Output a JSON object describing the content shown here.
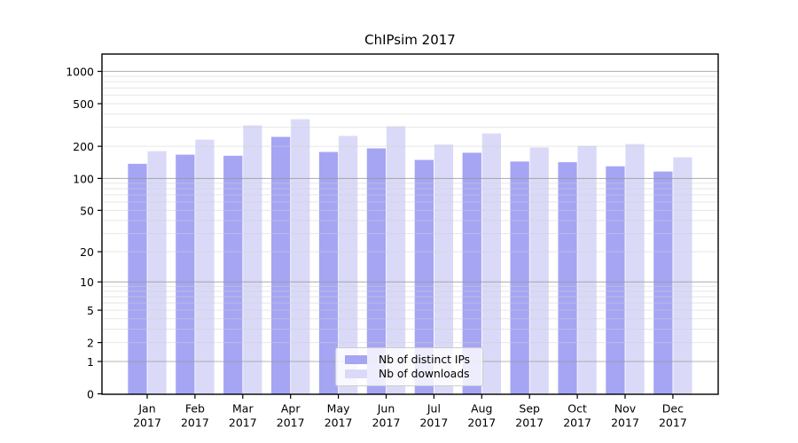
{
  "chart_data": {
    "type": "bar",
    "title": "ChIPsim 2017",
    "categories": [
      "Jan",
      "Feb",
      "Mar",
      "Apr",
      "May",
      "Jun",
      "Jul",
      "Aug",
      "Sep",
      "Oct",
      "Nov",
      "Dec"
    ],
    "xlabel_year": "2017",
    "series": [
      {
        "name": "Nb of distinct IPs",
        "color": "#a5a5f4",
        "values": [
          137,
          167,
          163,
          245,
          177,
          191,
          149,
          174,
          144,
          142,
          130,
          116
        ]
      },
      {
        "name": "Nb of downloads",
        "color": "#dadaf8",
        "values": [
          180,
          231,
          314,
          358,
          250,
          308,
          208,
          264,
          195,
          202,
          210,
          158
        ]
      }
    ],
    "yscale": "log1p",
    "yticks": [
      1000,
      500,
      200,
      100,
      50,
      20,
      10,
      5,
      2,
      1,
      0
    ],
    "ylim": [
      0,
      1450
    ],
    "grid": "both",
    "legend_position": "lower-center"
  },
  "style": {
    "major_grid_color": "#9a9a9a",
    "minor_grid_color": "#cfcfcf",
    "spine_color": "#000000",
    "tick_color": "#000000",
    "text_color": "#000000",
    "background": "#ffffff"
  }
}
